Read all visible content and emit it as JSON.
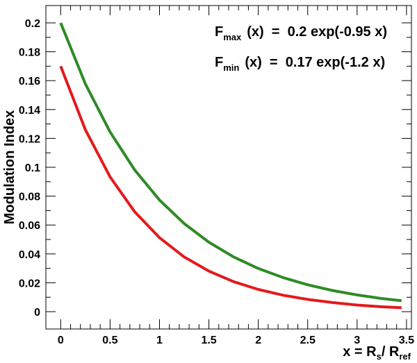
{
  "chart_data": {
    "type": "line",
    "xlim": [
      -0.15,
      3.55
    ],
    "ylim": [
      -0.012,
      0.212
    ],
    "xticks": [
      0,
      0.5,
      1,
      1.5,
      2,
      2.5,
      3,
      3.5
    ],
    "xtick_labels": [
      "0",
      "0.5",
      "1",
      "1.5",
      "2",
      "2.5",
      "3",
      "3.5"
    ],
    "yticks": [
      0,
      0.02,
      0.04,
      0.06,
      0.08,
      0.1,
      0.12,
      0.14,
      0.16,
      0.18,
      0.2
    ],
    "ytick_labels": [
      "0",
      "0.02",
      "0.04",
      "0.06",
      "0.08",
      "0.1",
      "0.12",
      "0.14",
      "0.16",
      "0.18",
      "0.2"
    ],
    "grid": false,
    "ylabel": "Modulation Index",
    "xlabel": {
      "prefix": "x = R",
      "sub1": "s",
      "mid": "/ R",
      "sub2": "ref"
    },
    "annotations": [
      {
        "main": "F",
        "sub": "max",
        "rest": "(x)  =  0.2 exp(-0.95 x)"
      },
      {
        "main": "F",
        "sub": "min",
        "rest": "(x)  =  0.17 exp(-1.2 x)"
      }
    ],
    "series": [
      {
        "color": "#2e8b25",
        "x": [
          0,
          0.25,
          0.5,
          0.75,
          1,
          1.25,
          1.5,
          1.75,
          2,
          2.25,
          2.5,
          2.75,
          3,
          3.25,
          3.45
        ],
        "y": [
          0.2,
          0.1577,
          0.1244,
          0.0981,
          0.0773,
          0.061,
          0.0481,
          0.0379,
          0.0299,
          0.0236,
          0.0186,
          0.0147,
          0.0116,
          0.0091,
          0.0076
        ]
      },
      {
        "color": "#e31a1c",
        "x": [
          0,
          0.25,
          0.5,
          0.75,
          1,
          1.25,
          1.5,
          1.75,
          2,
          2.25,
          2.5,
          2.75,
          3,
          3.25,
          3.45
        ],
        "y": [
          0.17,
          0.1259,
          0.0933,
          0.0691,
          0.0512,
          0.0379,
          0.0281,
          0.0208,
          0.0154,
          0.0114,
          0.0085,
          0.0063,
          0.0046,
          0.0034,
          0.0027
        ]
      }
    ]
  }
}
